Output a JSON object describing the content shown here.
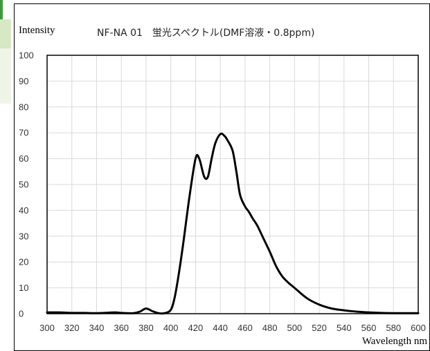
{
  "chart_data": {
    "type": "line",
    "title": "NF-NA 01　蛍光スペクトル(DMF溶液・0.8ppm)",
    "ylabel": "Intensity",
    "xlabel": "Wavelength nm",
    "xlim": [
      300,
      600
    ],
    "ylim": [
      0,
      100
    ],
    "xticks": [
      300,
      320,
      340,
      360,
      380,
      400,
      420,
      440,
      460,
      480,
      500,
      520,
      540,
      560,
      580,
      600
    ],
    "yticks": [
      0,
      10,
      20,
      30,
      40,
      50,
      60,
      70,
      80,
      90,
      100
    ],
    "grid": true,
    "series_color": "#000000",
    "x": [
      300,
      310,
      320,
      330,
      340,
      350,
      355,
      360,
      365,
      370,
      375,
      380,
      385,
      390,
      395,
      400,
      403,
      406,
      410,
      415,
      420,
      423,
      427,
      430,
      433,
      436,
      440,
      443,
      446,
      450,
      453,
      456,
      460,
      463,
      466,
      470,
      475,
      480,
      485,
      490,
      495,
      500,
      510,
      520,
      530,
      540,
      550,
      560,
      570,
      580,
      590,
      600
    ],
    "y": [
      0.5,
      0.5,
      0.3,
      0.3,
      0.2,
      0.4,
      0.5,
      0.3,
      0.2,
      0.2,
      0.8,
      2.0,
      1.0,
      0.2,
      0.2,
      1.5,
      6,
      14,
      27,
      45,
      60,
      60,
      53,
      53,
      60,
      66,
      69.5,
      69,
      67,
      63,
      55,
      46,
      41.5,
      39.5,
      37,
      34,
      29,
      24,
      18.5,
      14.5,
      12,
      10,
      6,
      3.5,
      2,
      1.3,
      0.8,
      0.5,
      0.3,
      0.2,
      0.2,
      0.2
    ]
  }
}
